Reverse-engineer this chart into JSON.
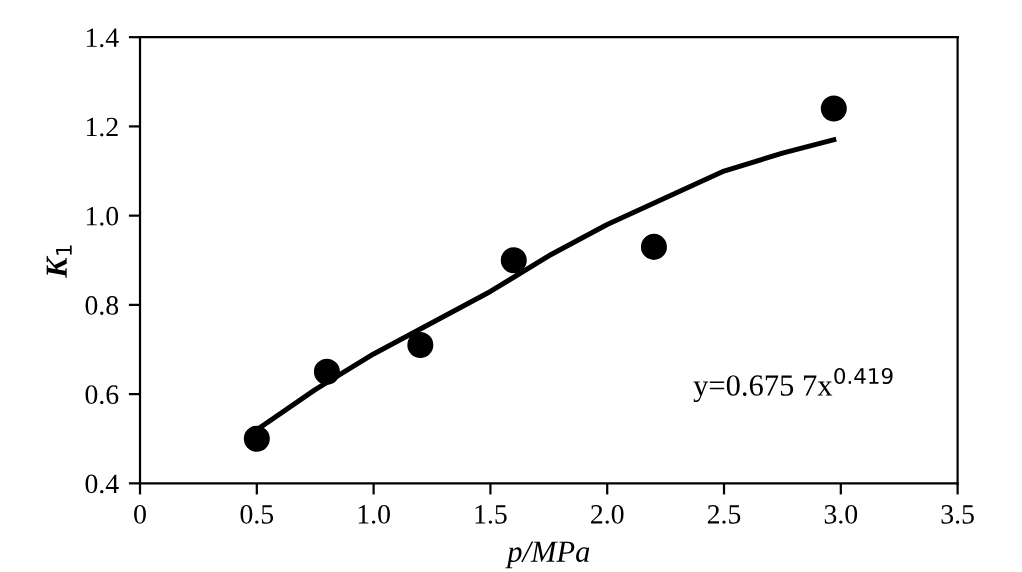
{
  "chart_data": {
    "type": "scatter",
    "xlabel": "p/MPa",
    "ylabel": "K$_{1}$",
    "xlim": [
      0,
      3.5
    ],
    "xticks": [
      0,
      {
        "value": 0.5,
        "label": "0.5"
      },
      {
        "value": 1.0,
        "label": "1.0"
      },
      {
        "value": 1.5,
        "label": "1.5"
      },
      {
        "value": 2.0,
        "label": "2.0"
      },
      {
        "value": 2.5,
        "label": "2.5"
      },
      {
        "value": 3.0,
        "label": "3.0"
      },
      {
        "value": 3.5,
        "label": "3.5"
      }
    ],
    "ylim": [
      0.4,
      1.4
    ],
    "yticks": [
      {
        "value": 0.4,
        "label": "0.4"
      },
      {
        "value": 0.6,
        "label": "0.6"
      },
      {
        "value": 0.8,
        "label": "0.8"
      },
      {
        "value": 1.0,
        "label": "1.0"
      },
      {
        "value": 1.2,
        "label": "1.2"
      },
      {
        "value": 1.4,
        "label": "1.4"
      }
    ],
    "grid": false,
    "legend": false,
    "series": [
      {
        "color": "#000000",
        "marker": "circle",
        "x": [
          0.5,
          0.8,
          1.2,
          1.6,
          2.2,
          2.97
        ],
        "values": [
          0.5,
          0.65,
          0.71,
          0.9,
          0.93,
          1.24
        ]
      },
      {
        "type": "line",
        "color": "#000000",
        "marker": "none",
        "line_style": "solid",
        "x": [
          0.5,
          0.75,
          1.0,
          1.25,
          1.5,
          1.75,
          2.0,
          2.25,
          2.5,
          2.75,
          2.97
        ],
        "values": [
          0.52,
          0.61,
          0.69,
          0.76,
          0.83,
          0.91,
          0.98,
          1.04,
          1.1,
          1.14,
          1.17
        ]
      }
    ],
    "annotations": [
      "y=0.675 7x$^{0.419}$"
    ]
  }
}
